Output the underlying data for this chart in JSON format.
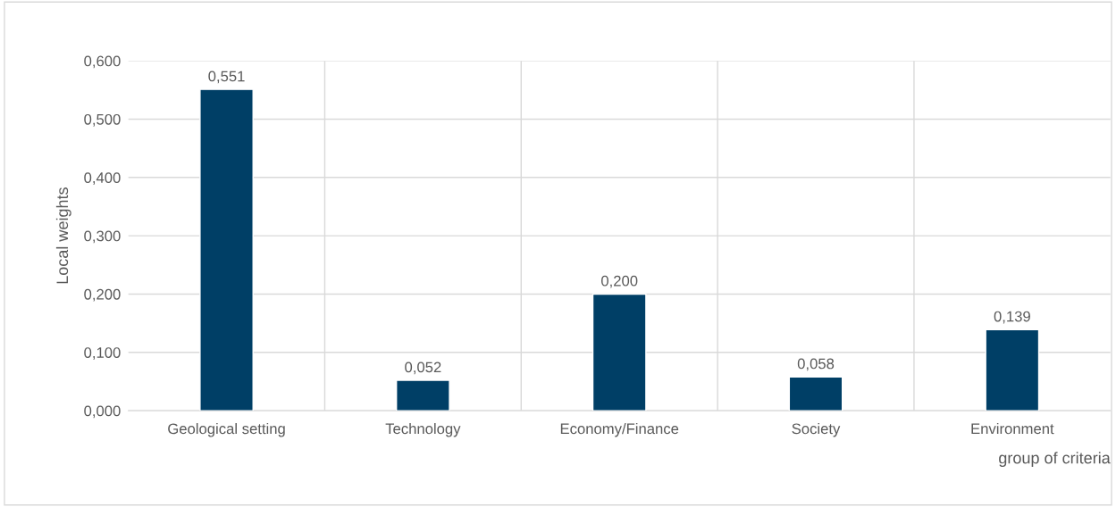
{
  "chart_data": {
    "type": "bar",
    "xlabel": "group of criteria",
    "ylabel": "Local weights",
    "categories": [
      "Geological setting",
      "Technology",
      "Economy/Finance",
      "Society",
      "Environment"
    ],
    "values": [
      0.551,
      0.052,
      0.2,
      0.058,
      0.139
    ],
    "value_labels": [
      "0,551",
      "0,052",
      "0,200",
      "0,058",
      "0,139"
    ],
    "color": "#003f66",
    "ylim": [
      0,
      0.6
    ],
    "yticks": [
      {
        "value": 0,
        "label": "0,000"
      },
      {
        "value": 0.1,
        "label": "0,100"
      },
      {
        "value": 0.2,
        "label": "0,200"
      },
      {
        "value": 0.3,
        "label": "0,300"
      },
      {
        "value": 0.4,
        "label": "0,400"
      },
      {
        "value": 0.5,
        "label": "0,500"
      },
      {
        "value": 0.6,
        "label": "0,600"
      }
    ],
    "grid": true,
    "legend": false
  }
}
